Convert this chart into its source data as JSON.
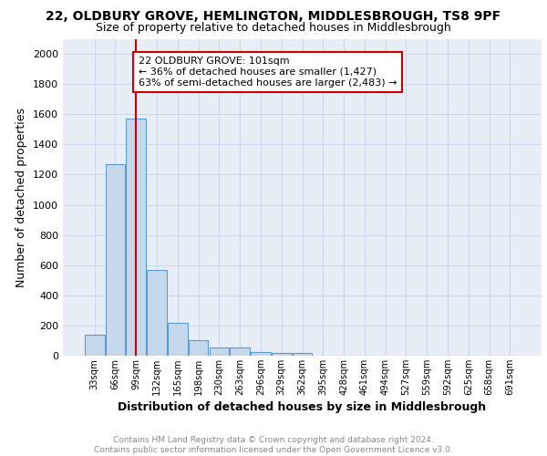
{
  "title_line1": "22, OLDBURY GROVE, HEMLINGTON, MIDDLESBROUGH, TS8 9PF",
  "title_line2": "Size of property relative to detached houses in Middlesbrough",
  "xlabel": "Distribution of detached houses by size in Middlesbrough",
  "ylabel": "Number of detached properties",
  "footnote": "Contains HM Land Registry data © Crown copyright and database right 2024.\nContains public sector information licensed under the Open Government Licence v3.0.",
  "categories": [
    "33sqm",
    "66sqm",
    "99sqm",
    "132sqm",
    "165sqm",
    "198sqm",
    "230sqm",
    "263sqm",
    "296sqm",
    "329sqm",
    "362sqm",
    "395sqm",
    "428sqm",
    "461sqm",
    "494sqm",
    "527sqm",
    "559sqm",
    "592sqm",
    "625sqm",
    "658sqm",
    "691sqm"
  ],
  "values": [
    140,
    1270,
    1570,
    570,
    220,
    100,
    55,
    55,
    25,
    20,
    20,
    0,
    0,
    0,
    0,
    0,
    0,
    0,
    0,
    0,
    0
  ],
  "bar_color": "#c6d9ec",
  "bar_edge_color": "#5b9bd5",
  "property_line_color": "#cc0000",
  "annotation_text": "22 OLDBURY GROVE: 101sqm\n← 36% of detached houses are smaller (1,427)\n63% of semi-detached houses are larger (2,483) →",
  "annotation_box_edge_color": "#cc0000",
  "annotation_box_fill": "#ffffff",
  "ylim": [
    0,
    2100
  ],
  "yticks": [
    0,
    200,
    400,
    600,
    800,
    1000,
    1200,
    1400,
    1600,
    1800,
    2000
  ],
  "grid_color": "#cdd8ea",
  "background_color": "#e8eef6",
  "title_fontsize": 10,
  "subtitle_fontsize": 9,
  "axis_label_fontsize": 9
}
